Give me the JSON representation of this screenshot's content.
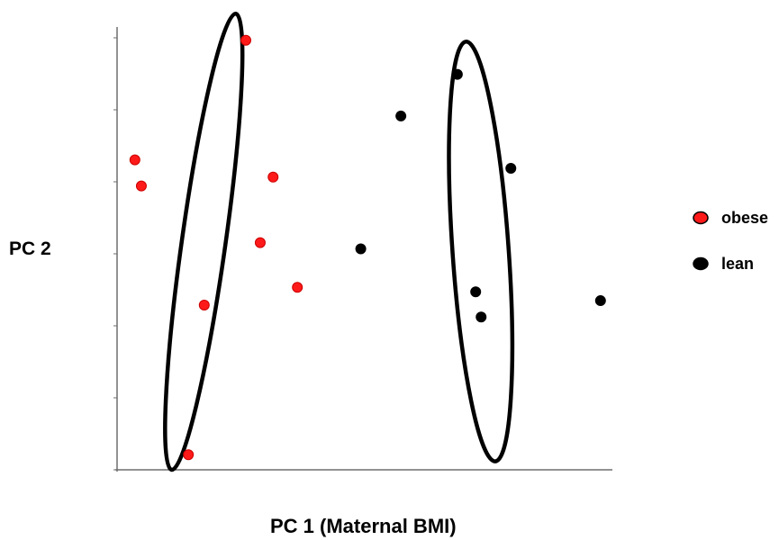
{
  "chart_data": {
    "type": "scatter",
    "title": "",
    "xlabel": "PC 1 (Maternal BMI)",
    "ylabel": "PC 2",
    "xlim": [
      0,
      100
    ],
    "ylim": [
      0,
      100
    ],
    "grid": false,
    "legend_position": "right",
    "series": [
      {
        "name": "obese",
        "color": "#ff1a1a",
        "stroke": "#cc0000",
        "x": [
          26.0,
          3.6,
          4.9,
          31.5,
          28.9,
          36.4,
          17.6,
          14.4
        ],
        "y": [
          97.0,
          70.0,
          64.1,
          66.1,
          51.3,
          41.2,
          37.2,
          3.4
        ]
      },
      {
        "name": "lean",
        "color": "#000000",
        "stroke": "#000000",
        "x": [
          68.7,
          57.3,
          79.5,
          49.2,
          72.4,
          73.5,
          97.6
        ],
        "y": [
          89.3,
          79.9,
          68.1,
          49.9,
          40.2,
          34.5,
          38.2
        ]
      }
    ],
    "clusters": [
      {
        "cx": 17.5,
        "cy": 51.5,
        "rx": 21,
        "ry": 52,
        "rotate": 8
      },
      {
        "cx": 73.4,
        "cy": 49.3,
        "rx": 27,
        "ry": 47.5,
        "rotate": -4
      }
    ]
  }
}
